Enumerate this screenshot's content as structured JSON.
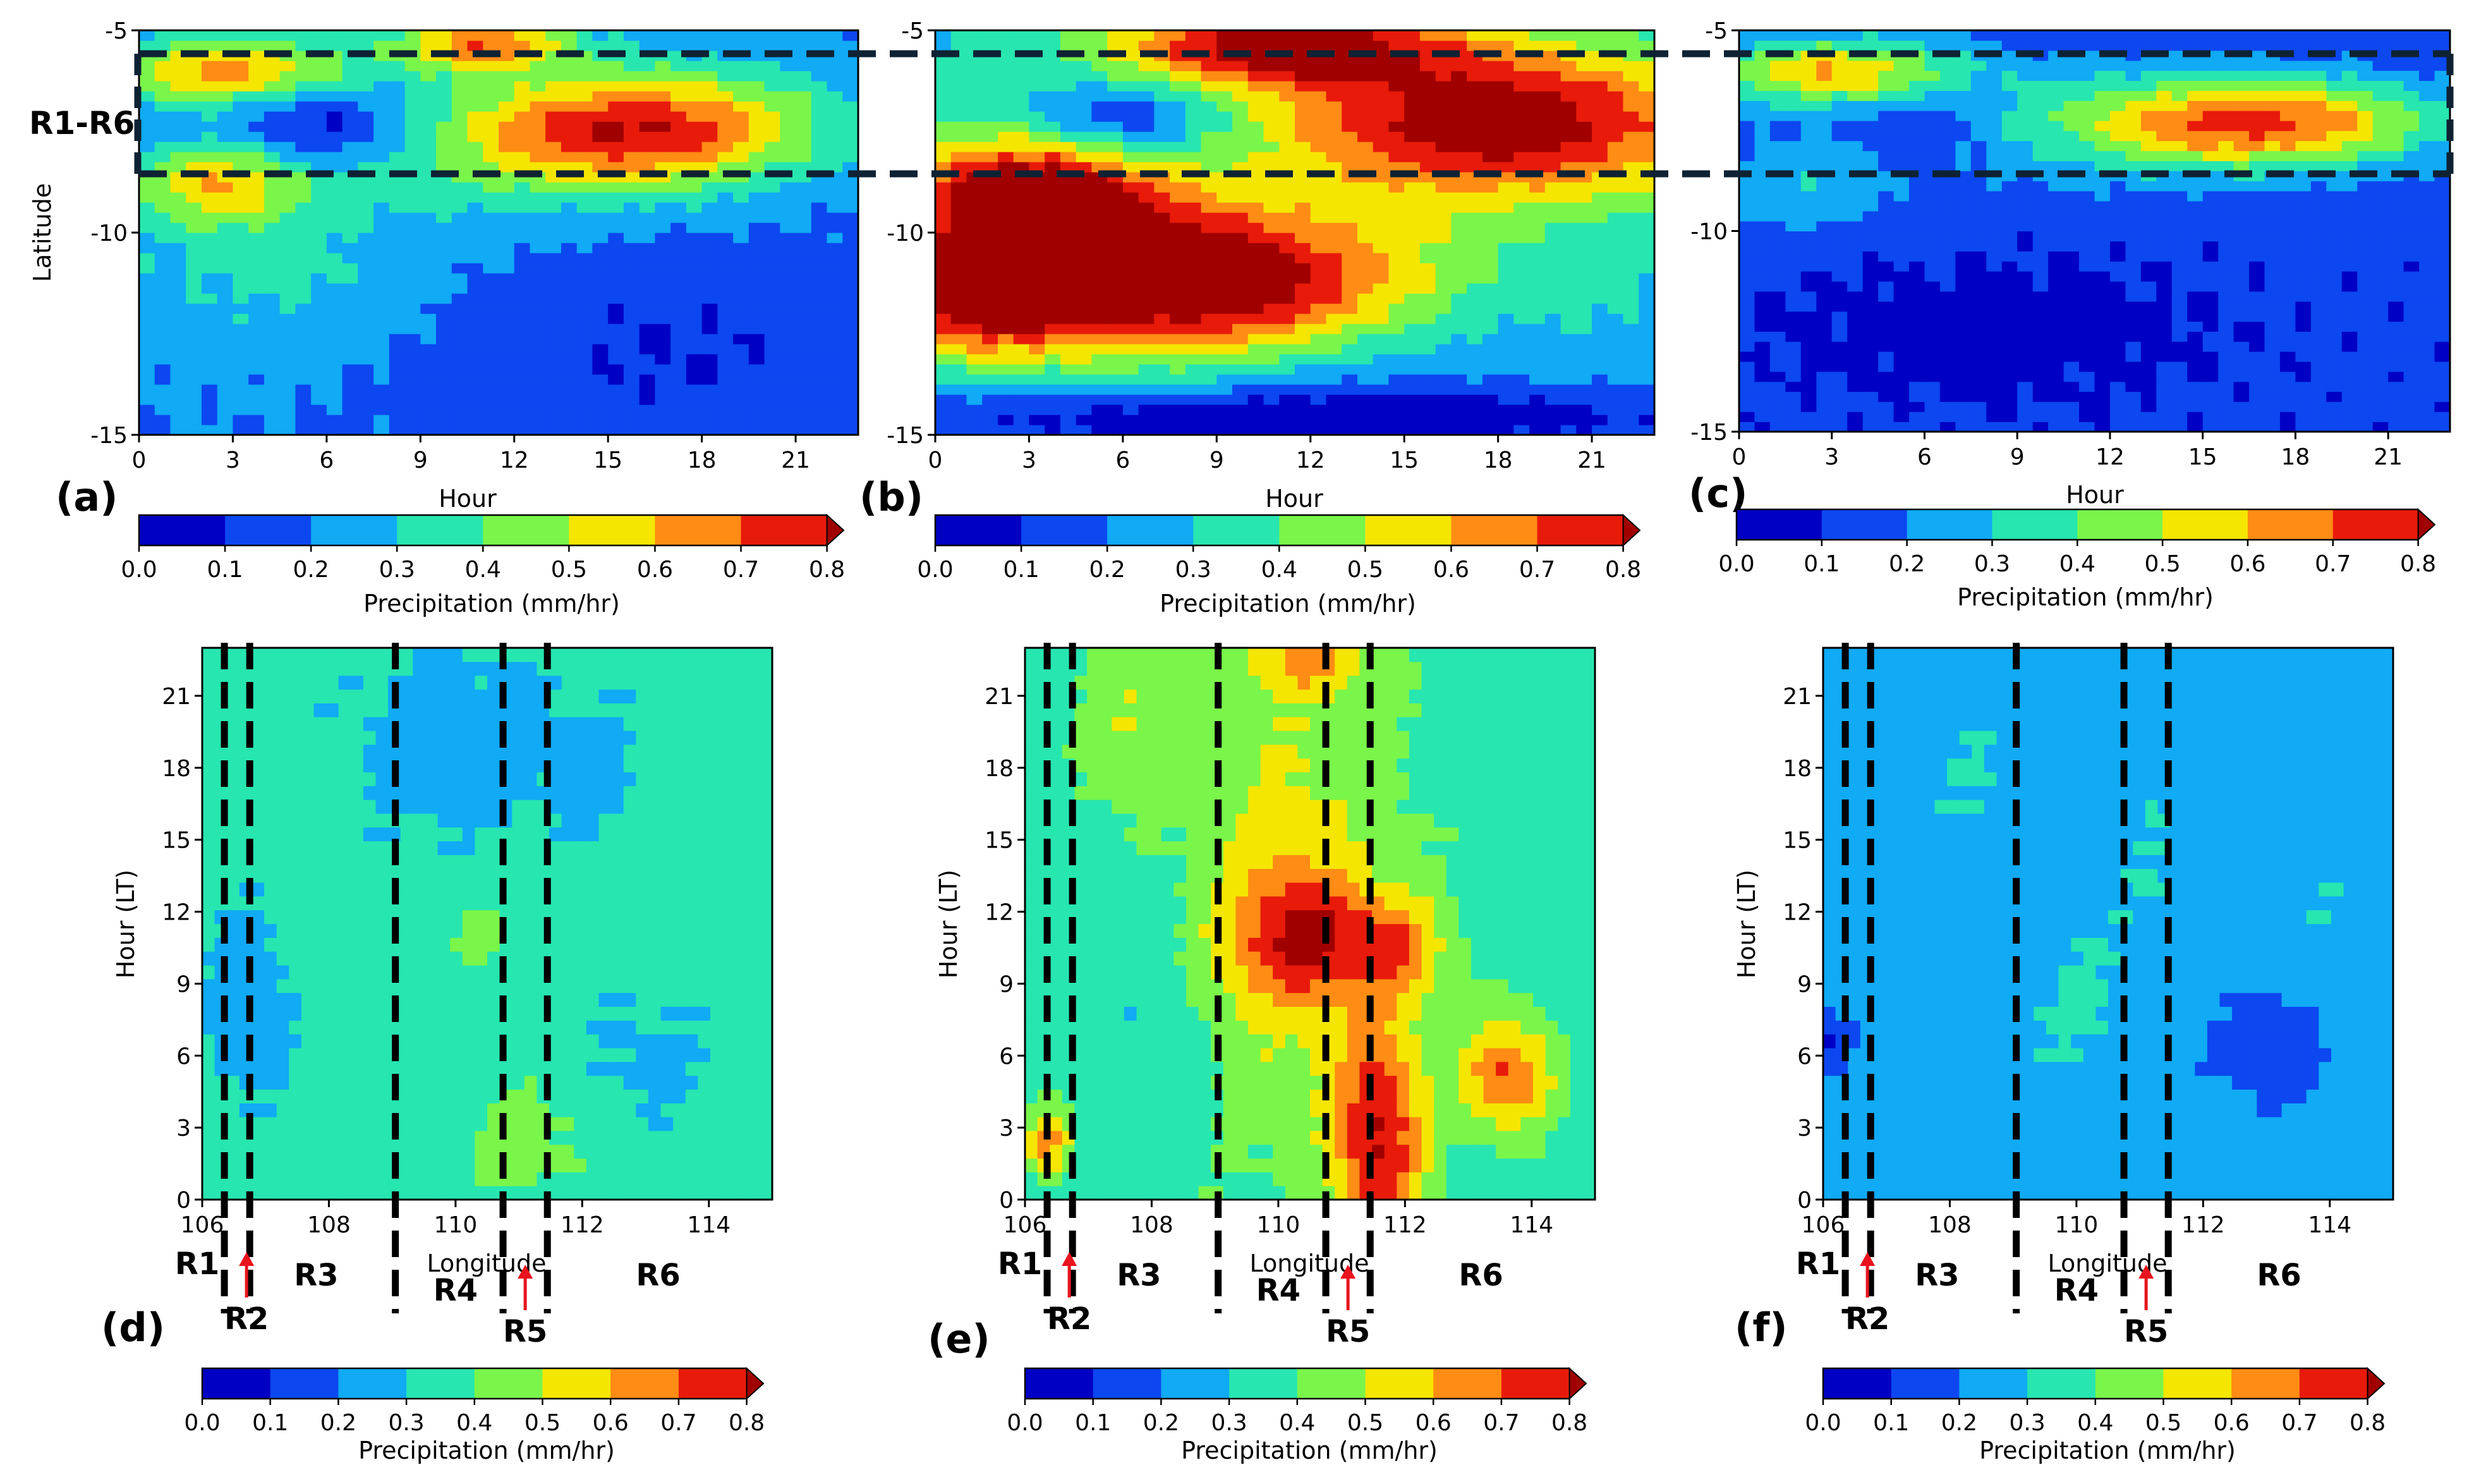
{
  "figure": {
    "band_label": "R1-R6"
  },
  "colorbar": {
    "label": "Precipitation (mm/hr)",
    "levels": [
      0.0,
      0.1,
      0.2,
      0.3,
      0.4,
      0.5,
      0.6,
      0.7,
      0.8
    ],
    "tick_labels": [
      "0.0",
      "0.1",
      "0.2",
      "0.3",
      "0.4",
      "0.5",
      "0.6",
      "0.7",
      "0.8"
    ],
    "colors": [
      "#0000c4",
      "#0c47f0",
      "#10aaf5",
      "#27e6b0",
      "#7af54a",
      "#f5e600",
      "#ff8c14",
      "#e81a0a"
    ],
    "extend_color": "#a00000"
  },
  "region_labels": [
    "R1",
    "R2",
    "R3",
    "R4",
    "R5",
    "R6"
  ],
  "arrow_color": "#e8141e",
  "chart_data": [
    {
      "panel": "(a)",
      "type": "heatmap",
      "xlabel": "Hour",
      "ylabel": "Latitude",
      "xlim": [
        0,
        23
      ],
      "ylim": [
        -15,
        -5
      ],
      "xticks": [
        0,
        3,
        6,
        9,
        12,
        15,
        18,
        21
      ],
      "yticks": [
        -15,
        -10,
        -5
      ],
      "band_lines_lat": [
        -5.6,
        -8.6
      ],
      "field": {
        "base": 0.2,
        "blobs": [
          {
            "x": 16,
            "y": -7.4,
            "sx": 4,
            "sy": 1.0,
            "a": 0.55
          },
          {
            "x": 3,
            "y": -6.0,
            "sx": 3,
            "sy": 0.6,
            "a": 0.45
          },
          {
            "x": 11,
            "y": -5.3,
            "sx": 2,
            "sy": 0.5,
            "a": 0.45
          },
          {
            "x": 6,
            "y": -7.2,
            "sx": 2,
            "sy": 0.8,
            "a": -0.22
          },
          {
            "x": 2.5,
            "y": -8.8,
            "sx": 2,
            "sy": 0.7,
            "a": 0.35
          },
          {
            "x": 11,
            "y": -8.2,
            "sx": 5,
            "sy": 1.2,
            "a": 0.12
          },
          {
            "x": 4,
            "y": -11.0,
            "sx": 4,
            "sy": 1.5,
            "a": 0.12
          },
          {
            "x": 17,
            "y": -13.0,
            "sx": 6,
            "sy": 2.0,
            "a": -0.1
          }
        ]
      }
    },
    {
      "panel": "(b)",
      "type": "heatmap",
      "xlabel": "Hour",
      "ylabel": "",
      "xlim": [
        0,
        23
      ],
      "ylim": [
        -15,
        -5
      ],
      "xticks": [
        0,
        3,
        6,
        9,
        12,
        15,
        18,
        21
      ],
      "yticks": [
        -15,
        -10,
        -5
      ],
      "band_lines_lat": [
        -5.6,
        -8.6
      ],
      "field": {
        "base": 0.3,
        "blobs": [
          {
            "x": 18,
            "y": -7.3,
            "sx": 5,
            "sy": 1.3,
            "a": 0.6
          },
          {
            "x": 11,
            "y": -5.4,
            "sx": 4,
            "sy": 0.7,
            "a": 0.55
          },
          {
            "x": 3,
            "y": -9.0,
            "sx": 3,
            "sy": 1.0,
            "a": 0.6
          },
          {
            "x": 8,
            "y": -11.2,
            "sx": 5,
            "sy": 1.3,
            "a": 0.7
          },
          {
            "x": 1.5,
            "y": -11.5,
            "sx": 2,
            "sy": 1.0,
            "a": 0.45
          },
          {
            "x": 6,
            "y": -7.2,
            "sx": 2,
            "sy": 0.7,
            "a": -0.25
          },
          {
            "x": 14,
            "y": -13.2,
            "sx": 5,
            "sy": 1.2,
            "a": -0.1
          },
          {
            "x": 11,
            "y": -14.6,
            "sx": 14,
            "sy": 0.6,
            "a": -0.25
          }
        ]
      }
    },
    {
      "panel": "(c)",
      "type": "heatmap",
      "xlabel": "Hour",
      "ylabel": "",
      "xlim": [
        0,
        23
      ],
      "ylim": [
        -15,
        -5
      ],
      "xticks": [
        0,
        3,
        6,
        9,
        12,
        15,
        18,
        21
      ],
      "yticks": [
        -15,
        -10,
        -5
      ],
      "band_lines_lat": [
        -5.6,
        -8.6
      ],
      "field": {
        "base": 0.12,
        "blobs": [
          {
            "x": 17,
            "y": -7.3,
            "sx": 4,
            "sy": 0.8,
            "a": 0.55
          },
          {
            "x": 3,
            "y": -6.0,
            "sx": 3,
            "sy": 0.6,
            "a": 0.45
          },
          {
            "x": 10,
            "y": -7.3,
            "sx": 6,
            "sy": 1.2,
            "a": 0.15
          },
          {
            "x": 6,
            "y": -7.2,
            "sx": 2,
            "sy": 0.8,
            "a": -0.12
          },
          {
            "x": 2,
            "y": -9.0,
            "sx": 2,
            "sy": 0.8,
            "a": 0.15
          },
          {
            "x": 8,
            "y": -12.5,
            "sx": 5,
            "sy": 1.2,
            "a": -0.06
          }
        ]
      }
    },
    {
      "panel": "(d)",
      "type": "heatmap",
      "xlabel": "Longitude",
      "ylabel": "Hour (LT)",
      "xlim": [
        106,
        115
      ],
      "ylim": [
        0,
        23
      ],
      "xticks": [
        106,
        108,
        110,
        112,
        114
      ],
      "yticks": [
        0,
        3,
        6,
        9,
        12,
        15,
        18,
        21
      ],
      "region_lines_lon": [
        106.35,
        106.75,
        109.05,
        110.75,
        111.45
      ],
      "region_label_lon": [
        106.2,
        106.6,
        107.8,
        110.0,
        111.1,
        113.2
      ],
      "field": {
        "base": 0.34,
        "blobs": [
          {
            "x": 110,
            "y": 19,
            "sx": 1.2,
            "sy": 3.0,
            "a": -0.09
          },
          {
            "x": 106.7,
            "y": 8,
            "sx": 0.5,
            "sy": 3.0,
            "a": -0.09
          },
          {
            "x": 113,
            "y": 6,
            "sx": 0.7,
            "sy": 2.0,
            "a": -0.07
          },
          {
            "x": 112.2,
            "y": 18,
            "sx": 0.5,
            "sy": 2.0,
            "a": -0.07
          },
          {
            "x": 111.1,
            "y": 2.5,
            "sx": 0.8,
            "sy": 2.0,
            "a": 0.1
          },
          {
            "x": 110.3,
            "y": 11,
            "sx": 0.5,
            "sy": 1.0,
            "a": 0.08
          }
        ]
      }
    },
    {
      "panel": "(e)",
      "type": "heatmap",
      "xlabel": "Longitude",
      "ylabel": "Hour (LT)",
      "xlim": [
        106,
        115
      ],
      "ylim": [
        0,
        23
      ],
      "xticks": [
        106,
        108,
        110,
        112,
        114
      ],
      "yticks": [
        0,
        3,
        6,
        9,
        12,
        15,
        18,
        21
      ],
      "region_lines_lon": [
        106.35,
        106.75,
        109.05,
        110.75,
        111.45
      ],
      "region_label_lon": [
        106.2,
        106.6,
        107.8,
        110.0,
        111.1,
        113.2
      ],
      "field": {
        "base": 0.36,
        "blobs": [
          {
            "x": 110.2,
            "y": 13,
            "sx": 1.2,
            "sy": 8.0,
            "a": 0.17
          },
          {
            "x": 110.3,
            "y": 11,
            "sx": 0.8,
            "sy": 2.0,
            "a": 0.3
          },
          {
            "x": 111.8,
            "y": 10.5,
            "sx": 0.6,
            "sy": 1.5,
            "a": 0.25
          },
          {
            "x": 111.6,
            "y": 2.5,
            "sx": 0.5,
            "sy": 3.5,
            "a": 0.42
          },
          {
            "x": 113.6,
            "y": 5.2,
            "sx": 0.5,
            "sy": 1.6,
            "a": 0.35
          },
          {
            "x": 110.5,
            "y": 22.5,
            "sx": 0.7,
            "sy": 1.0,
            "a": 0.2
          },
          {
            "x": 108,
            "y": 8,
            "sx": 0.8,
            "sy": 4.0,
            "a": -0.06
          },
          {
            "x": 107.6,
            "y": 20,
            "sx": 0.5,
            "sy": 2.5,
            "a": 0.14
          },
          {
            "x": 106.4,
            "y": 2.5,
            "sx": 0.25,
            "sy": 1.0,
            "a": 0.3
          }
        ]
      }
    },
    {
      "panel": "(f)",
      "type": "heatmap",
      "xlabel": "Longitude",
      "ylabel": "Hour (LT)",
      "xlim": [
        106,
        115
      ],
      "ylim": [
        0,
        23
      ],
      "xticks": [
        106,
        108,
        110,
        112,
        114
      ],
      "yticks": [
        0,
        3,
        6,
        9,
        12,
        15,
        18,
        21
      ],
      "region_lines_lon": [
        106.35,
        106.75,
        109.05,
        110.75,
        111.45
      ],
      "region_label_lon": [
        106.2,
        106.6,
        107.8,
        110.0,
        111.1,
        113.2
      ],
      "field": {
        "base": 0.24,
        "blobs": [
          {
            "x": 113.1,
            "y": 6.3,
            "sx": 0.6,
            "sy": 1.5,
            "a": -0.14
          },
          {
            "x": 106.1,
            "y": 6.6,
            "sx": 0.3,
            "sy": 0.8,
            "a": -0.15
          },
          {
            "x": 110,
            "y": 8,
            "sx": 0.8,
            "sy": 3.0,
            "a": 0.07
          },
          {
            "x": 108.3,
            "y": 18,
            "sx": 0.8,
            "sy": 3.0,
            "a": 0.06
          },
          {
            "x": 111.3,
            "y": 14,
            "sx": 0.5,
            "sy": 3.0,
            "a": 0.06
          },
          {
            "x": 114.2,
            "y": 11,
            "sx": 0.5,
            "sy": 3.0,
            "a": 0.06
          }
        ]
      }
    }
  ]
}
